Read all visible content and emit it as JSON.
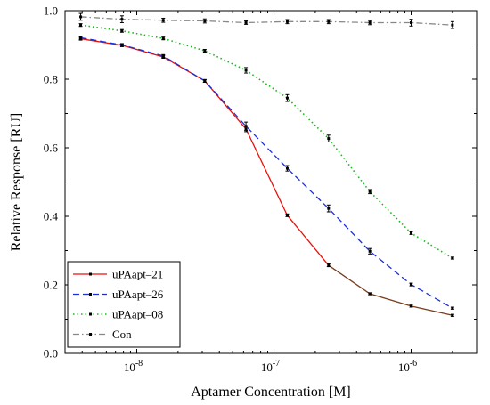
{
  "chart_data": {
    "type": "line",
    "title": "",
    "xlabel": "Aptamer Concentration [M]",
    "ylabel": "Relative Response [RU]",
    "xscale": "log",
    "xlim": [
      3e-09,
      3e-06
    ],
    "ylim": [
      0,
      1.0
    ],
    "yticks": [
      0.0,
      0.2,
      0.4,
      0.6,
      0.8,
      1.0
    ],
    "ytick_labels": [
      "0.0",
      "0.2",
      "0.4",
      "0.6",
      "0.8",
      "1.0"
    ],
    "xticks_major_labels": [
      {
        "value": 1e-08,
        "base": "10",
        "exp": "-8"
      },
      {
        "value": 1e-07,
        "base": "10",
        "exp": "-7"
      },
      {
        "value": 1e-06,
        "base": "10",
        "exp": "-6"
      }
    ],
    "grid": false,
    "legend_position": "bottom-left",
    "x": [
      3.9e-09,
      7.8e-09,
      1.56e-08,
      3.13e-08,
      6.25e-08,
      1.25e-07,
      2.5e-07,
      5e-07,
      1e-06,
      2e-06
    ],
    "series": [
      {
        "name": "uPAapt–21",
        "color": "#e8120c",
        "color2": "#7a3b1d",
        "dash": "solid",
        "values": [
          0.918,
          0.899,
          0.865,
          0.795,
          0.655,
          0.403,
          0.257,
          0.174,
          0.138,
          0.111
        ],
        "errors": [
          0.004,
          0.004,
          0.004,
          0.004,
          0.008,
          0.004,
          0.004,
          0.003,
          0.003,
          0.003
        ]
      },
      {
        "name": "uPAapt–26",
        "color": "#1a2fd6",
        "dash": "dash",
        "values": [
          0.921,
          0.9,
          0.868,
          0.795,
          0.663,
          0.54,
          0.423,
          0.298,
          0.201,
          0.132
        ],
        "errors": [
          0.004,
          0.004,
          0.004,
          0.004,
          0.012,
          0.008,
          0.01,
          0.008,
          0.004,
          0.003
        ]
      },
      {
        "name": "uPAapt–08",
        "color": "#19b81c",
        "dash": "dot",
        "values": [
          0.958,
          0.941,
          0.919,
          0.883,
          0.826,
          0.745,
          0.627,
          0.472,
          0.351,
          0.278
        ],
        "errors": [
          0.004,
          0.004,
          0.004,
          0.004,
          0.008,
          0.01,
          0.01,
          0.006,
          0.004,
          0.003
        ]
      },
      {
        "name": "Con",
        "color": "#888888",
        "dash": "dashdot",
        "values": [
          0.982,
          0.975,
          0.972,
          0.97,
          0.965,
          0.968,
          0.968,
          0.965,
          0.965,
          0.958
        ],
        "errors": [
          0.01,
          0.01,
          0.006,
          0.006,
          0.005,
          0.006,
          0.006,
          0.006,
          0.01,
          0.01
        ]
      }
    ]
  }
}
